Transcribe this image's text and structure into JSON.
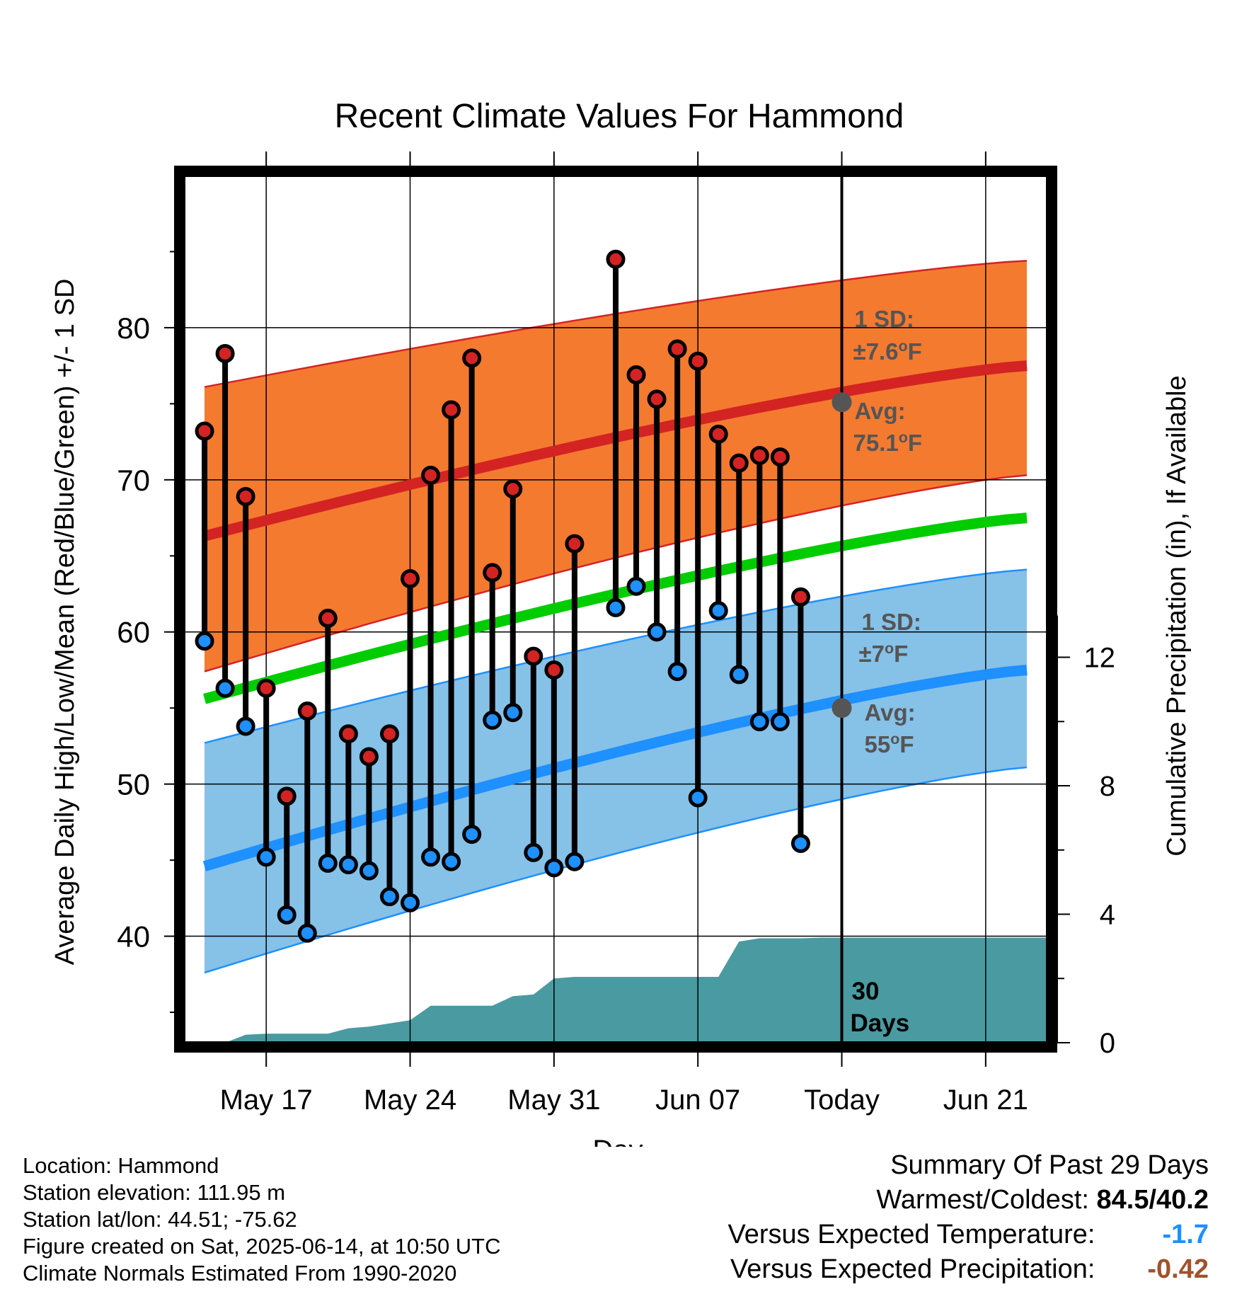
{
  "chart_data": {
    "type": "line",
    "title": "Recent Climate Values For Hammond",
    "xlabel": "Day",
    "ylabel": "Average Daily High/Low/Mean (Red/Blue/Green) +/- 1 SD",
    "ylabel_right": "Cumulative Precipitation (in), If Available",
    "ylim": [
      33,
      90
    ],
    "ylim_right": [
      0,
      27
    ],
    "xlim": [
      "2025-05-13",
      "2025-06-24"
    ],
    "yticks": [
      "40",
      "50",
      "60",
      "70",
      "80"
    ],
    "yticks_right": [
      "0",
      "4",
      "8",
      "12"
    ],
    "xticks": [
      {
        "date": "2025-05-17",
        "label": "May 17"
      },
      {
        "date": "2025-05-24",
        "label": "May 24"
      },
      {
        "date": "2025-05-31",
        "label": "May 31"
      },
      {
        "date": "2025-06-07",
        "label": "Jun 07"
      },
      {
        "date": "2025-06-14",
        "label": "Today"
      },
      {
        "date": "2025-06-21",
        "label": "Jun 21"
      }
    ],
    "grid": true,
    "colors": {
      "high_band": "#f47a30",
      "high_line": "#d42323",
      "mean_line": "#00cc00",
      "low_band": "#86c1e8",
      "low_line": "#1e90ff",
      "precip": "#4a9aa2",
      "high_dot": "#d42323",
      "low_dot": "#1e90ff",
      "avg_dot": "#555555",
      "annotation": "#555555"
    },
    "normals": {
      "dates": [
        "2025-05-14",
        "2025-06-23"
      ],
      "high_avg": [
        66.3,
        77.5
      ],
      "high_upper": [
        76.1,
        84.4
      ],
      "high_lower": [
        57.4,
        70.3
      ],
      "low_avg": [
        44.6,
        57.5
      ],
      "low_upper": [
        52.7,
        64.1
      ],
      "low_lower": [
        37.6,
        51.1
      ],
      "mean_avg": [
        55.6,
        67.5
      ]
    },
    "daily": {
      "dates": [
        "2025-05-14",
        "2025-05-15",
        "2025-05-16",
        "2025-05-17",
        "2025-05-18",
        "2025-05-19",
        "2025-05-20",
        "2025-05-21",
        "2025-05-22",
        "2025-05-23",
        "2025-05-24",
        "2025-05-25",
        "2025-05-26",
        "2025-05-27",
        "2025-05-28",
        "2025-05-29",
        "2025-05-30",
        "2025-05-31",
        "2025-06-01",
        "2025-06-02",
        "2025-06-03",
        "2025-06-04",
        "2025-06-05",
        "2025-06-06",
        "2025-06-07",
        "2025-06-08",
        "2025-06-09",
        "2025-06-10",
        "2025-06-11",
        "2025-06-12",
        "2025-06-13"
      ],
      "high": [
        73.2,
        78.3,
        68.9,
        56.3,
        49.2,
        54.8,
        60.9,
        53.3,
        51.8,
        53.3,
        63.5,
        70.3,
        74.6,
        78.0,
        63.9,
        69.4,
        58.4,
        57.5,
        65.8,
        null,
        84.5,
        76.9,
        75.3,
        78.6,
        77.8,
        73.0,
        71.1,
        71.6,
        71.5,
        62.3,
        null
      ],
      "low": [
        59.4,
        56.3,
        53.8,
        45.2,
        41.4,
        40.2,
        44.8,
        44.7,
        44.3,
        42.6,
        42.2,
        45.2,
        44.9,
        46.7,
        54.2,
        54.7,
        45.5,
        44.5,
        44.9,
        null,
        61.6,
        63.0,
        60.0,
        57.4,
        49.1,
        61.4,
        57.2,
        54.1,
        54.1,
        46.1,
        null
      ]
    },
    "precip_cumulative": {
      "dates": [
        "2025-05-13",
        "2025-05-15",
        "2025-05-16",
        "2025-05-17",
        "2025-05-18",
        "2025-05-19",
        "2025-05-20",
        "2025-05-21",
        "2025-05-22",
        "2025-05-23",
        "2025-05-24",
        "2025-05-25",
        "2025-05-26",
        "2025-05-27",
        "2025-05-28",
        "2025-05-29",
        "2025-05-30",
        "2025-05-31",
        "2025-06-01",
        "2025-06-02",
        "2025-06-03",
        "2025-06-04",
        "2025-06-05",
        "2025-06-06",
        "2025-06-07",
        "2025-06-08",
        "2025-06-09",
        "2025-06-10",
        "2025-06-11",
        "2025-06-12",
        "2025-06-13",
        "2025-06-24"
      ],
      "values": [
        0,
        0,
        0.25,
        0.28,
        0.28,
        0.28,
        0.28,
        0.45,
        0.5,
        0.6,
        0.7,
        1.15,
        1.15,
        1.15,
        1.15,
        1.45,
        1.5,
        2.0,
        2.05,
        2.05,
        2.05,
        2.05,
        2.05,
        2.05,
        2.05,
        2.05,
        3.15,
        3.25,
        3.25,
        3.25,
        3.27,
        3.27
      ]
    },
    "today": {
      "date": "2025-06-14",
      "label": "30 Days"
    },
    "annotations": {
      "high_sd_title": "1 SD:",
      "high_sd_value": "±7.6°F",
      "high_avg_title": "Avg:",
      "high_avg_value": "75.1°F",
      "high_avg_point": 75.1,
      "low_sd_title": "1 SD:",
      "low_sd_value": "±7°F",
      "low_avg_title": "Avg:",
      "low_avg_value": "55°F",
      "low_avg_point": 55
    }
  },
  "info": {
    "location": "Location: Hammond",
    "elevation": "Station elevation: 111.95 m",
    "latlon": "Station lat/lon: 44.51; -75.62",
    "created": "Figure created on Sat, 2025-06-14, at 10:50 UTC",
    "normals": "Climate Normals Estimated From 1990-2020"
  },
  "summary": {
    "heading": "Summary Of Past 29 Days",
    "warm_cold_label": "Warmest/Coldest:",
    "warm_cold_value": "84.5/40.2",
    "temp_label": "Versus Expected Temperature:",
    "temp_value": "-1.7",
    "temp_color": "#1e90ff",
    "precip_label": "Versus Expected Precipitation:",
    "precip_value": "-0.42",
    "precip_color": "#a0522d"
  }
}
